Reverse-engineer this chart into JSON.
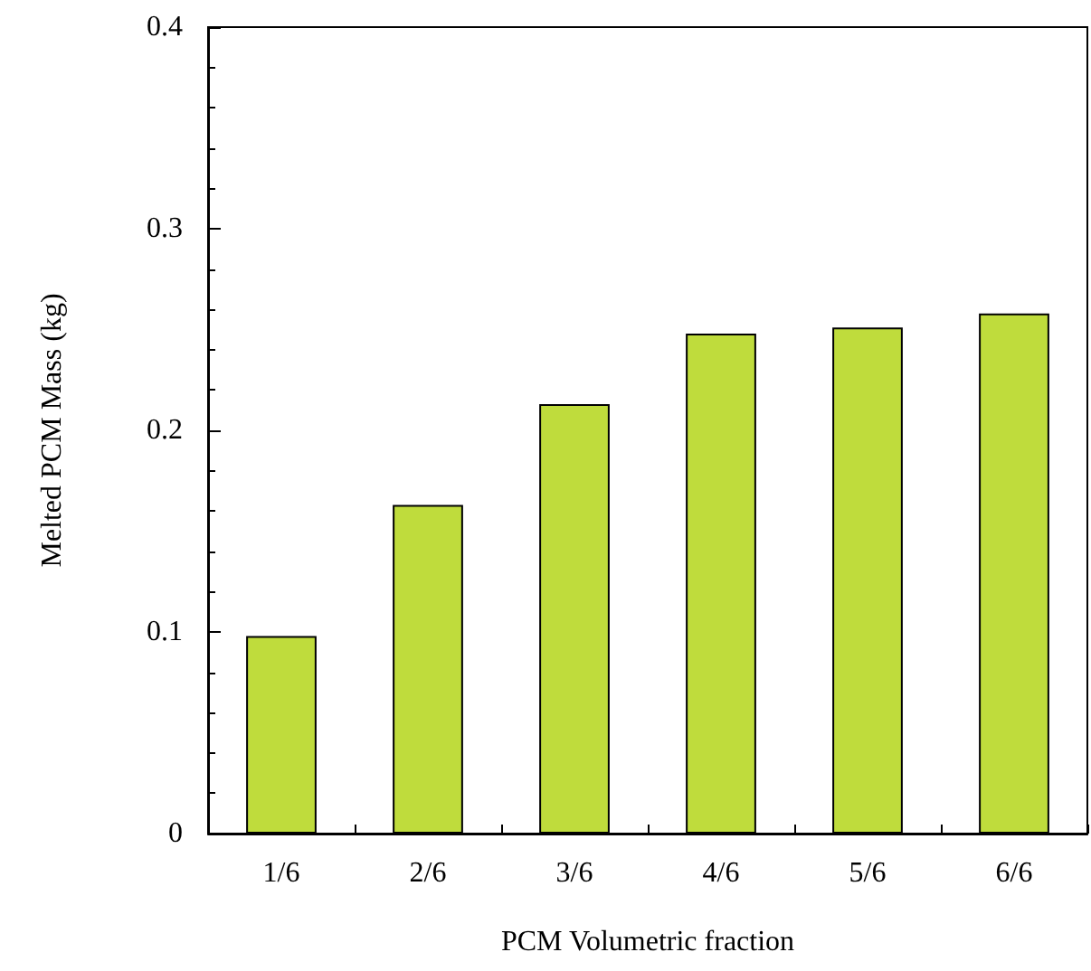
{
  "chart_data": {
    "type": "bar",
    "xlabel": "PCM Volumetric fraction",
    "ylabel": "Melted PCM Mass (kg)",
    "categories": [
      "1/6",
      "2/6",
      "3/6",
      "4/6",
      "5/6",
      "6/6"
    ],
    "values": [
      0.098,
      0.163,
      0.213,
      0.248,
      0.251,
      0.258
    ],
    "color": "#bfdc3c",
    "ylim": [
      0,
      0.4
    ],
    "yticks": [
      0,
      0.1,
      0.2,
      0.3,
      0.4
    ],
    "grid": false
  }
}
